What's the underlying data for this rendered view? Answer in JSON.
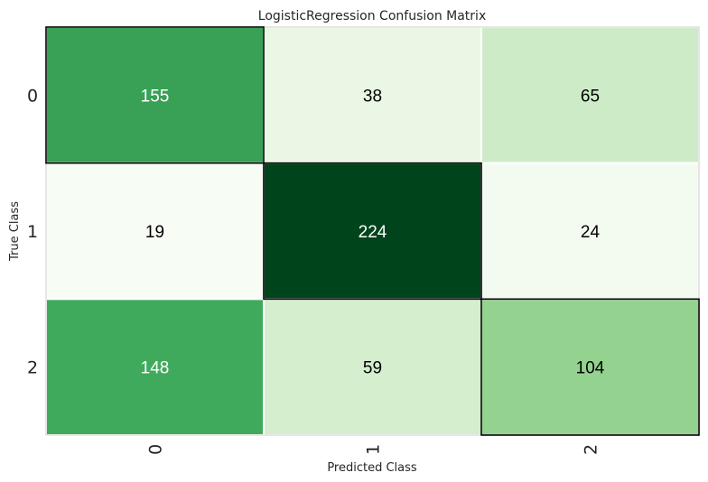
{
  "chart_data": {
    "type": "heatmap",
    "title": "LogisticRegression Confusion Matrix",
    "xlabel": "Predicted Class",
    "ylabel": "True Class",
    "x_categories": [
      "0",
      "1",
      "2"
    ],
    "y_categories": [
      "0",
      "1",
      "2"
    ],
    "values": [
      [
        155,
        38,
        65
      ],
      [
        19,
        224,
        24
      ],
      [
        148,
        59,
        104
      ]
    ],
    "highlight_diagonal": true,
    "colormap": "Greens",
    "grid": false,
    "colors": {
      "frame": "#cccccc",
      "cell_divider": "#ffffff",
      "diagonal_outline": "#000000",
      "light_label": "#ffffff",
      "dark_label": "#000000"
    }
  }
}
